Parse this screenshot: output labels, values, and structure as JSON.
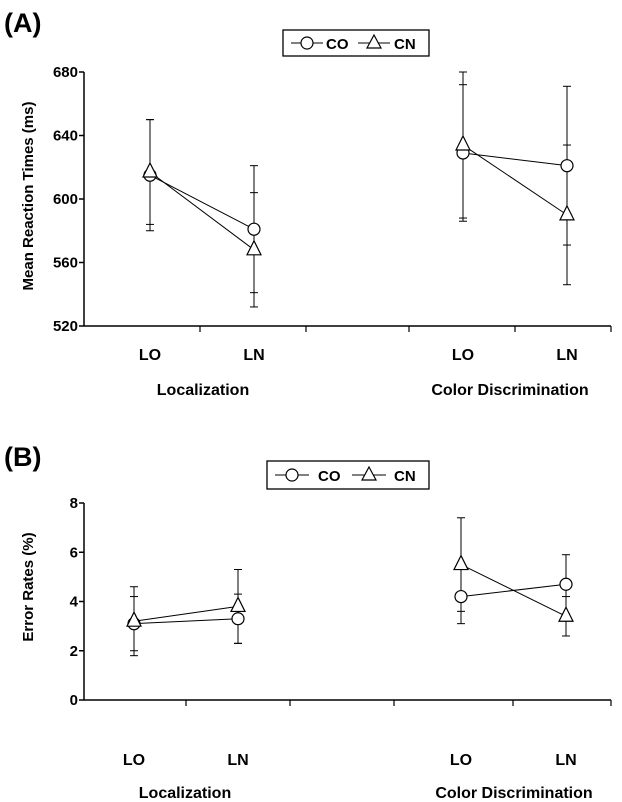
{
  "chart_data": [
    {
      "type": "line",
      "panel": "(A)",
      "categories": [
        "LO",
        "LN",
        "LO",
        "LN"
      ],
      "groups": [
        "Localization",
        "Color Discrimination"
      ],
      "ylabel": "Mean Reaction Times (ms)",
      "ylim": [
        520,
        680
      ],
      "yticks": [
        "520",
        "560",
        "600",
        "640",
        "680"
      ],
      "legend_position": "top-center",
      "series": [
        {
          "name": "CO",
          "marker": "circle",
          "segments": [
            [
              615,
              581
            ],
            [
              629,
              621
            ]
          ],
          "err": [
            [
              35,
              40
            ],
            [
              43,
              50
            ]
          ]
        },
        {
          "name": "CN",
          "marker": "triangle",
          "segments": [
            [
              617,
              568
            ],
            [
              634,
              590
            ]
          ],
          "err": [
            [
              33,
              36
            ],
            [
              46,
              44
            ]
          ]
        }
      ]
    },
    {
      "type": "line",
      "panel": "(B)",
      "categories": [
        "LO",
        "LN",
        "LO",
        "LN"
      ],
      "groups": [
        "Localization",
        "Color Discrimination"
      ],
      "ylabel": "Error Rates (%)",
      "ylim": [
        0,
        8
      ],
      "yticks": [
        "0",
        "2",
        "4",
        "6",
        "8"
      ],
      "legend_position": "top-center",
      "series": [
        {
          "name": "CO",
          "marker": "circle",
          "segments": [
            [
              3.1,
              3.3
            ],
            [
              4.2,
              4.7
            ]
          ],
          "err": [
            [
              1.1,
              1.0
            ],
            [
              1.1,
              1.2
            ]
          ]
        },
        {
          "name": "CN",
          "marker": "triangle",
          "segments": [
            [
              3.2,
              3.8
            ],
            [
              5.5,
              3.4
            ]
          ],
          "err": [
            [
              1.4,
              1.5
            ],
            [
              1.9,
              0.8
            ]
          ]
        }
      ]
    }
  ]
}
